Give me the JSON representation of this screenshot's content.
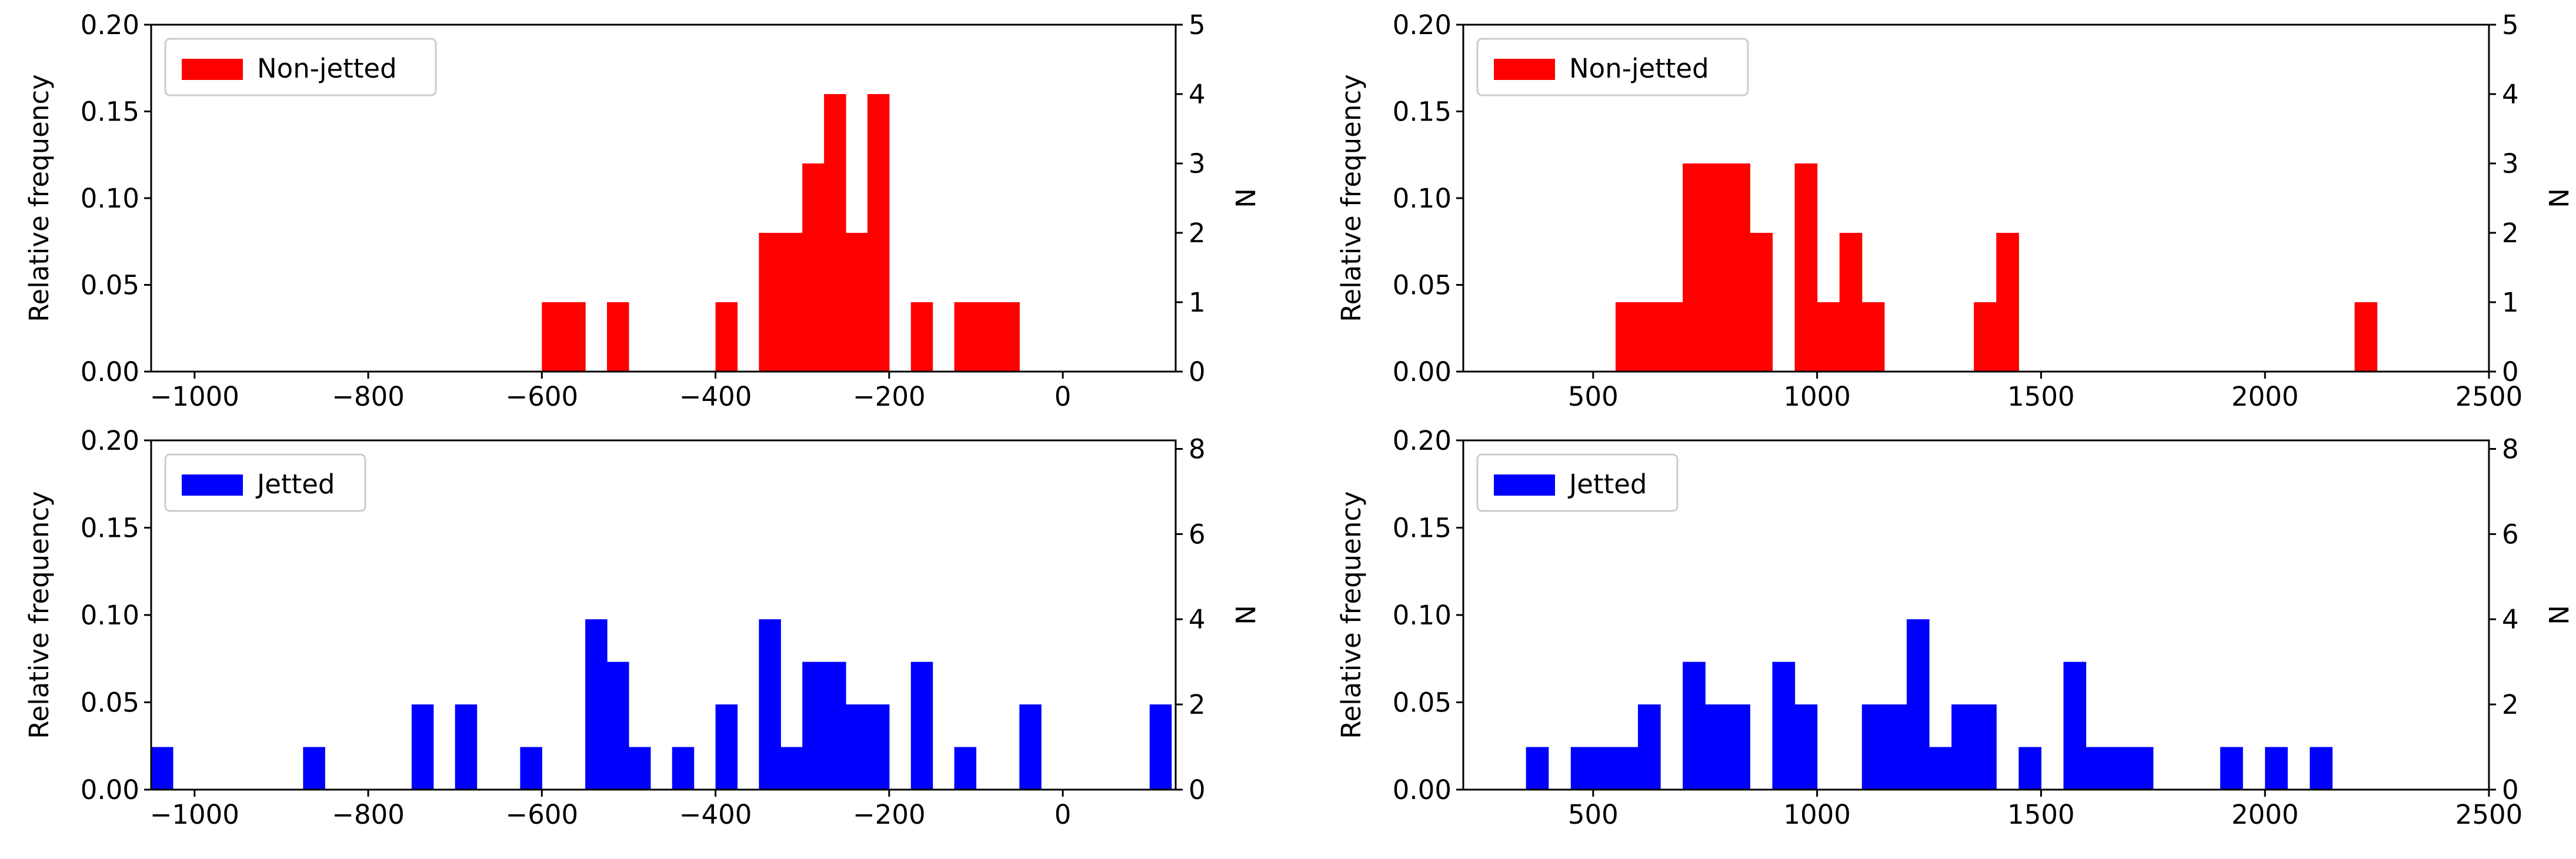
{
  "chart_data": [
    {
      "type": "bar",
      "series_name": "Non-jetted",
      "color": "#ff0000",
      "bin_width": 25,
      "xlim": [
        -1050,
        130
      ],
      "ylim": [
        0,
        0.2
      ],
      "ylim_right": [
        0,
        5
      ],
      "xticks": [
        -1000,
        -800,
        -600,
        -400,
        -200,
        0
      ],
      "xtick_labels": [
        "−1000",
        "−800",
        "−600",
        "−400",
        "−200",
        "0"
      ],
      "yticks": [
        0,
        0.05,
        0.1,
        0.15,
        0.2
      ],
      "ytick_labels": [
        "0.00",
        "0.05",
        "0.10",
        "0.15",
        "0.20"
      ],
      "right_ticks": [
        0,
        1,
        2,
        3,
        4,
        5
      ],
      "right_tick_labels": [
        "0",
        "1",
        "2",
        "3",
        "4",
        "5"
      ],
      "ylabel": "Relative frequency",
      "ylabel_right": "N",
      "legend_label": "Non-jetted",
      "legend_position": "top-left",
      "bars": [
        {
          "x": -600,
          "count": 1
        },
        {
          "x": -575,
          "count": 1
        },
        {
          "x": -525,
          "count": 1
        },
        {
          "x": -400,
          "count": 1
        },
        {
          "x": -350,
          "count": 2
        },
        {
          "x": -325,
          "count": 2
        },
        {
          "x": -300,
          "count": 3
        },
        {
          "x": -275,
          "count": 4
        },
        {
          "x": -250,
          "count": 2
        },
        {
          "x": -225,
          "count": 4
        },
        {
          "x": -175,
          "count": 1
        },
        {
          "x": -125,
          "count": 1
        },
        {
          "x": -100,
          "count": 1
        },
        {
          "x": -75,
          "count": 1
        }
      ]
    },
    {
      "type": "bar",
      "series_name": "Non-jetted",
      "color": "#ff0000",
      "bin_width": 50,
      "xlim": [
        210,
        2500
      ],
      "ylim": [
        0,
        0.2
      ],
      "ylim_right": [
        0,
        5
      ],
      "xticks": [
        500,
        1000,
        1500,
        2000,
        2500
      ],
      "xtick_labels": [
        "500",
        "1000",
        "1500",
        "2000",
        "2500"
      ],
      "yticks": [
        0,
        0.05,
        0.1,
        0.15,
        0.2
      ],
      "ytick_labels": [
        "0.00",
        "0.05",
        "0.10",
        "0.15",
        "0.20"
      ],
      "right_ticks": [
        0,
        1,
        2,
        3,
        4,
        5
      ],
      "right_tick_labels": [
        "0",
        "1",
        "2",
        "3",
        "4",
        "5"
      ],
      "ylabel": "Relative frequency",
      "ylabel_right": "N",
      "legend_label": "Non-jetted",
      "legend_position": "top-left",
      "bars": [
        {
          "x": 550,
          "count": 1
        },
        {
          "x": 600,
          "count": 1
        },
        {
          "x": 650,
          "count": 1
        },
        {
          "x": 700,
          "count": 3
        },
        {
          "x": 750,
          "count": 3
        },
        {
          "x": 800,
          "count": 3
        },
        {
          "x": 850,
          "count": 2
        },
        {
          "x": 950,
          "count": 3
        },
        {
          "x": 1000,
          "count": 1
        },
        {
          "x": 1050,
          "count": 2
        },
        {
          "x": 1100,
          "count": 1
        },
        {
          "x": 1350,
          "count": 1
        },
        {
          "x": 1400,
          "count": 2
        },
        {
          "x": 2200,
          "count": 1
        }
      ]
    },
    {
      "type": "bar",
      "series_name": "Jetted",
      "color": "#0000ff",
      "bin_width": 25,
      "xlim": [
        -1050,
        130
      ],
      "ylim": [
        0,
        0.2
      ],
      "ylim_right": [
        0,
        8.2
      ],
      "xticks": [
        -1000,
        -800,
        -600,
        -400,
        -200,
        0
      ],
      "xtick_labels": [
        "−1000",
        "−800",
        "−600",
        "−400",
        "−200",
        "0"
      ],
      "yticks": [
        0,
        0.05,
        0.1,
        0.15,
        0.2
      ],
      "ytick_labels": [
        "0.00",
        "0.05",
        "0.10",
        "0.15",
        "0.20"
      ],
      "right_ticks": [
        0,
        2,
        4,
        6,
        8
      ],
      "right_tick_labels": [
        "0",
        "2",
        "4",
        "6",
        "8"
      ],
      "ylabel": "Relative frequency",
      "ylabel_right": "N",
      "legend_label": "Jetted",
      "legend_position": "top-left",
      "bars": [
        {
          "x": -1050,
          "count": 1
        },
        {
          "x": -875,
          "count": 1
        },
        {
          "x": -750,
          "count": 2
        },
        {
          "x": -700,
          "count": 2
        },
        {
          "x": -625,
          "count": 1
        },
        {
          "x": -550,
          "count": 4
        },
        {
          "x": -525,
          "count": 3
        },
        {
          "x": -500,
          "count": 1
        },
        {
          "x": -450,
          "count": 1
        },
        {
          "x": -400,
          "count": 2
        },
        {
          "x": -350,
          "count": 4
        },
        {
          "x": -325,
          "count": 1
        },
        {
          "x": -300,
          "count": 3
        },
        {
          "x": -275,
          "count": 3
        },
        {
          "x": -250,
          "count": 2
        },
        {
          "x": -225,
          "count": 2
        },
        {
          "x": -175,
          "count": 3
        },
        {
          "x": -125,
          "count": 1
        },
        {
          "x": -50,
          "count": 2
        },
        {
          "x": 100,
          "count": 2
        }
      ]
    },
    {
      "type": "bar",
      "series_name": "Jetted",
      "color": "#0000ff",
      "bin_width": 50,
      "xlim": [
        210,
        2500
      ],
      "ylim": [
        0,
        0.2
      ],
      "ylim_right": [
        0,
        8.2
      ],
      "xticks": [
        500,
        1000,
        1500,
        2000,
        2500
      ],
      "xtick_labels": [
        "500",
        "1000",
        "1500",
        "2000",
        "2500"
      ],
      "yticks": [
        0,
        0.05,
        0.1,
        0.15,
        0.2
      ],
      "ytick_labels": [
        "0.00",
        "0.05",
        "0.10",
        "0.15",
        "0.20"
      ],
      "right_ticks": [
        0,
        2,
        4,
        6,
        8
      ],
      "right_tick_labels": [
        "0",
        "2",
        "4",
        "6",
        "8"
      ],
      "ylabel": "Relative frequency",
      "ylabel_right": "N",
      "legend_label": "Jetted",
      "legend_position": "top-left",
      "bars": [
        {
          "x": 350,
          "count": 1
        },
        {
          "x": 450,
          "count": 1
        },
        {
          "x": 500,
          "count": 1
        },
        {
          "x": 550,
          "count": 1
        },
        {
          "x": 600,
          "count": 2
        },
        {
          "x": 700,
          "count": 3
        },
        {
          "x": 750,
          "count": 2
        },
        {
          "x": 800,
          "count": 2
        },
        {
          "x": 900,
          "count": 3
        },
        {
          "x": 950,
          "count": 2
        },
        {
          "x": 1100,
          "count": 2
        },
        {
          "x": 1150,
          "count": 2
        },
        {
          "x": 1200,
          "count": 4
        },
        {
          "x": 1250,
          "count": 1
        },
        {
          "x": 1300,
          "count": 2
        },
        {
          "x": 1350,
          "count": 2
        },
        {
          "x": 1450,
          "count": 1
        },
        {
          "x": 1550,
          "count": 3
        },
        {
          "x": 1600,
          "count": 1
        },
        {
          "x": 1650,
          "count": 1
        },
        {
          "x": 1700,
          "count": 1
        },
        {
          "x": 1900,
          "count": 1
        },
        {
          "x": 2000,
          "count": 1
        },
        {
          "x": 2100,
          "count": 1
        }
      ]
    }
  ]
}
